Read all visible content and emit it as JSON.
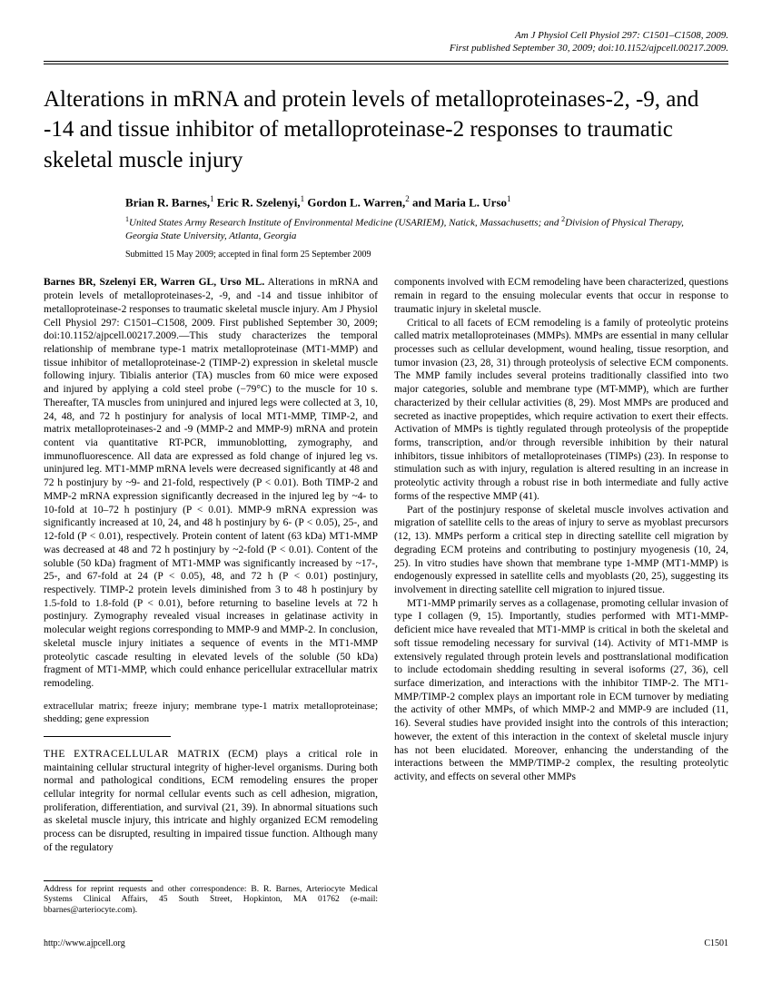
{
  "journal_header": {
    "line1": "Am J Physiol Cell Physiol 297: C1501–C1508, 2009.",
    "line2": "First published September 30, 2009; doi:10.1152/ajpcell.00217.2009."
  },
  "title": "Alterations in mRNA and protein levels of metalloproteinases-2, -9, and -14 and tissue inhibitor of metalloproteinase-2 responses to traumatic skeletal muscle injury",
  "authors_html": "Brian R. Barnes,<sup>1</sup> Eric R. Szelenyi,<sup>1</sup> Gordon L. Warren,<sup>2</sup> and Maria L. Urso<sup>1</sup>",
  "affiliations_html": "<sup>1</sup>United States Army Research Institute of Environmental Medicine (USARIEM), Natick, Massachusetts; and <sup>2</sup>Division of Physical Therapy, Georgia State University, Atlanta, Georgia",
  "submitted": "Submitted 15 May 2009; accepted in final form 25 September 2009",
  "abstract_lead": "Barnes BR, Szelenyi ER, Warren GL, Urso ML.",
  "abstract_body": " Alterations in mRNA and protein levels of metalloproteinases-2, -9, and -14 and tissue inhibitor of metalloproteinase-2 responses to traumatic skeletal muscle injury. Am J Physiol Cell Physiol 297: C1501–C1508, 2009. First published September 30, 2009; doi:10.1152/ajpcell.00217.2009.—This study characterizes the temporal relationship of membrane type-1 matrix metalloproteinase (MT1-MMP) and tissue inhibitor of metalloproteinase-2 (TIMP-2) expression in skeletal muscle following injury. Tibialis anterior (TA) muscles from 60 mice were exposed and injured by applying a cold steel probe (−79°C) to the muscle for 10 s. Thereafter, TA muscles from uninjured and injured legs were collected at 3, 10, 24, 48, and 72 h postinjury for analysis of local MT1-MMP, TIMP-2, and matrix metalloproteinases-2 and -9 (MMP-2 and MMP-9) mRNA and protein content via quantitative RT-PCR, immunoblotting, zymography, and immunofluorescence. All data are expressed as fold change of injured leg vs. uninjured leg. MT1-MMP mRNA levels were decreased significantly at 48 and 72 h postinjury by ~9- and 21-fold, respectively (P < 0.01). Both TIMP-2 and MMP-2 mRNA expression significantly decreased in the injured leg by ~4- to 10-fold at 10–72 h postinjury (P < 0.01). MMP-9 mRNA expression was significantly increased at 10, 24, and 48 h postinjury by 6- (P < 0.05), 25-, and 12-fold (P < 0.01), respectively. Protein content of latent (63 kDa) MT1-MMP was decreased at 48 and 72 h postinjury by ~2-fold (P < 0.01). Content of the soluble (50 kDa) fragment of MT1-MMP was significantly increased by ~17-, 25-, and 67-fold at 24 (P < 0.05), 48, and 72 h (P < 0.01) postinjury, respectively. TIMP-2 protein levels diminished from 3 to 48 h postinjury by 1.5-fold to 1.8-fold (P < 0.01), before returning to baseline levels at 72 h postinjury. Zymography revealed visual increases in gelatinase activity in molecular weight regions corresponding to MMP-9 and MMP-2. In conclusion, skeletal muscle injury initiates a sequence of events in the MT1-MMP proteolytic cascade resulting in elevated levels of the soluble (50 kDa) fragment of MT1-MMP, which could enhance pericellular extracellular matrix remodeling.",
  "keywords": "extracellular matrix; freeze injury; membrane type-1 matrix metalloproteinase; shedding; gene expression",
  "intro_lead": "THE EXTRACELLULAR MATRIX",
  "intro_p1": " (ECM) plays a critical role in maintaining cellular structural integrity of higher-level organisms. During both normal and pathological conditions, ECM remodeling ensures the proper cellular integrity for normal cellular events such as cell adhesion, migration, proliferation, differentiation, and survival (21, 39). In abnormal situations such as skeletal muscle injury, this intricate and highly organized ECM remodeling process can be disrupted, resulting in impaired tissue function. Although many of the regulatory",
  "col2_p1": "components involved with ECM remodeling have been characterized, questions remain in regard to the ensuing molecular events that occur in response to traumatic injury in skeletal muscle.",
  "col2_p2": "Critical to all facets of ECM remodeling is a family of proteolytic proteins called matrix metalloproteinases (MMPs). MMPs are essential in many cellular processes such as cellular development, wound healing, tissue resorption, and tumor invasion (23, 28, 31) through proteolysis of selective ECM components. The MMP family includes several proteins traditionally classified into two major categories, soluble and membrane type (MT-MMP), which are further characterized by their cellular activities (8, 29). Most MMPs are produced and secreted as inactive propeptides, which require activation to exert their effects. Activation of MMPs is tightly regulated through proteolysis of the propeptide forms, transcription, and/or through reversible inhibition by their natural inhibitors, tissue inhibitors of metalloproteinases (TIMPs) (23). In response to stimulation such as with injury, regulation is altered resulting in an increase in proteolytic activity through a robust rise in both intermediate and fully active forms of the respective MMP (41).",
  "col2_p3": "Part of the postinjury response of skeletal muscle involves activation and migration of satellite cells to the areas of injury to serve as myoblast precursors (12, 13). MMPs perform a critical step in directing satellite cell migration by degrading ECM proteins and contributing to postinjury myogenesis (10, 24, 25). In vitro studies have shown that membrane type 1-MMP (MT1-MMP) is endogenously expressed in satellite cells and myoblasts (20, 25), suggesting its involvement in directing satellite cell migration to injured tissue.",
  "col2_p4": "MT1-MMP primarily serves as a collagenase, promoting cellular invasion of type I collagen (9, 15). Importantly, studies performed with MT1-MMP-deficient mice have revealed that MT1-MMP is critical in both the skeletal and soft tissue remodeling necessary for survival (14). Activity of MT1-MMP is extensively regulated through protein levels and posttranslational modification to include ectodomain shedding resulting in several isoforms (27, 36), cell surface dimerization, and interactions with the inhibitor TIMP-2. The MT1-MMP/TIMP-2 complex plays an important role in ECM turnover by mediating the activity of other MMPs, of which MMP-2 and MMP-9 are included (11, 16). Several studies have provided insight into the controls of this interaction; however, the extent of this interaction in the context of skeletal muscle injury has not been elucidated. Moreover, enhancing the understanding of the interactions between the MMP/TIMP-2 complex, the resulting proteolytic activity, and effects on several other MMPs",
  "footnote": "Address for reprint requests and other correspondence: B. R. Barnes, Arteriocyte Medical Systems Clinical Affairs, 45 South Street, Hopkinton, MA 01762 (e-mail: bbarnes@arteriocyte.com).",
  "footer": {
    "left": "http://www.ajpcell.org",
    "right": "C1501"
  }
}
